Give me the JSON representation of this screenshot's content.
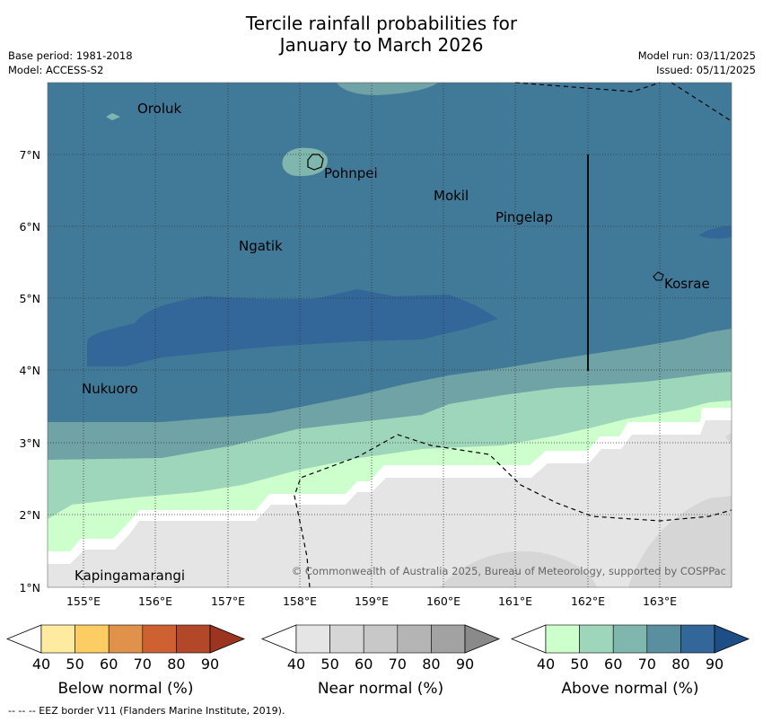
{
  "title_line1": "Tercile rainfall probabilities for",
  "title_line2": "January to March 2026",
  "meta": {
    "base_period": "Base period: 1981-2018",
    "model": "Model: ACCESS-S2",
    "model_run": "Model run: 03/11/2025",
    "issued": "Issued: 05/11/2025"
  },
  "map": {
    "lon_ticks": [
      "155°E",
      "156°E",
      "157°E",
      "158°E",
      "159°E",
      "160°E",
      "161°E",
      "162°E",
      "163°E"
    ],
    "lat_ticks": [
      "7°N",
      "6°N",
      "5°N",
      "4°N",
      "3°N",
      "2°N",
      "1°N"
    ],
    "places": [
      "Oroluk",
      "Pohnpei",
      "Mokil",
      "Pingelap",
      "Ngatik",
      "Kosrae",
      "Nukuoro",
      "Kapingamarangi"
    ],
    "copyright": "© Commonwealth of Australia 2025, Bureau of Meteorology, supported by COSPPac"
  },
  "legend": {
    "tick_labels": [
      "40",
      "50",
      "60",
      "70",
      "80",
      "90"
    ],
    "below_title": "Below normal (%)",
    "near_title": "Near normal (%)",
    "above_title": "Above normal (%)",
    "below_colors": [
      "#ffeba0",
      "#fdcc63",
      "#e0924a",
      "#cf6032",
      "#b24828",
      "#9b3520"
    ],
    "near_colors": [
      "#e5e5e5",
      "#d6d6d6",
      "#c8c8c8",
      "#b4b4b4",
      "#a2a2a2",
      "#8a8a8a"
    ],
    "above_colors": [
      "#ccffcc",
      "#9ed6bb",
      "#7fb6ad",
      "#5a8fa0",
      "#336699",
      "#1d4e85"
    ]
  },
  "footer": "--  --  -- EEZ border V11 (Flanders Marine Institute, 2019)."
}
